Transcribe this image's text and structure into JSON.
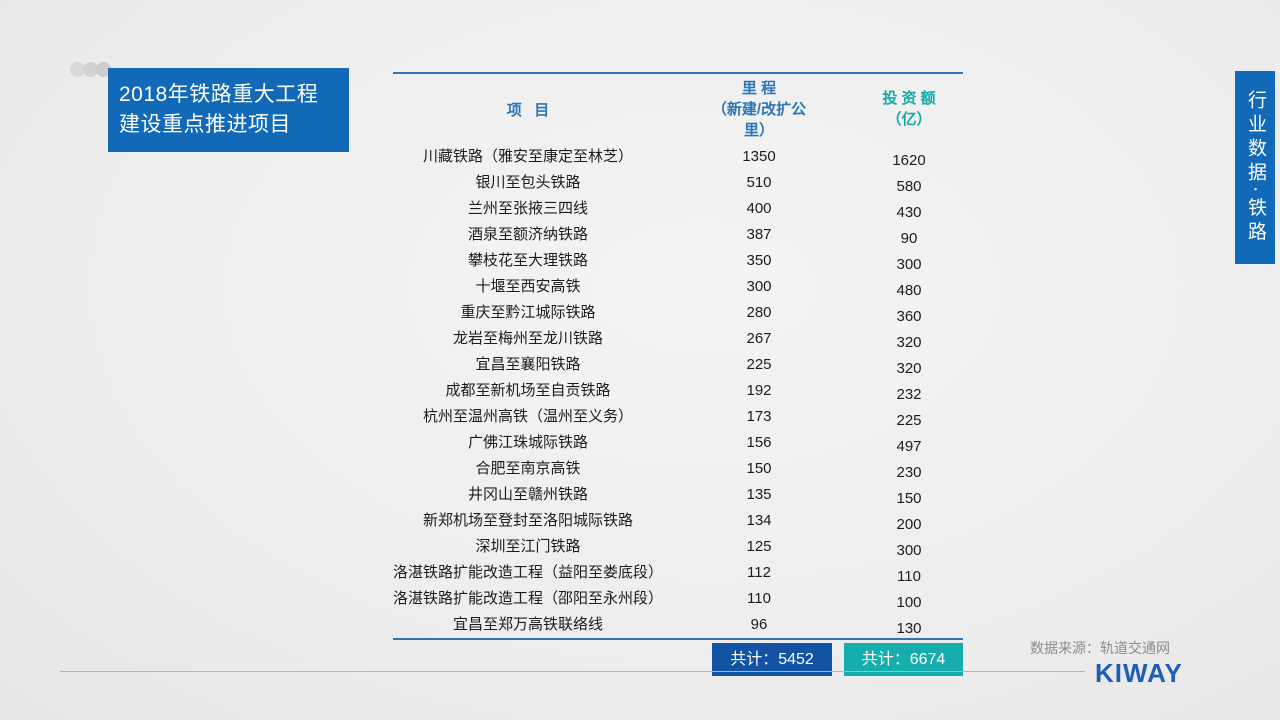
{
  "colors": {
    "accent_blue": "#1169b8",
    "header_blue": "#2e75b6",
    "teal": "#17a9a6",
    "total_blue": "#1253a5",
    "total_teal": "#16aeac",
    "logo_blue": "#1d5fb8"
  },
  "slide": {
    "title_lines": [
      "2018年铁路重大工程",
      "建设重点推进项目"
    ],
    "side_tab": "行业数据·铁路"
  },
  "table": {
    "headers": {
      "project": "项   目",
      "mileage_lines": [
        "里 程",
        "（新建/改扩公",
        "里）"
      ],
      "investment_lines": [
        "投 资 额",
        "（亿）"
      ]
    },
    "rows": [
      {
        "project": "川藏铁路（雅安至康定至林芝）",
        "mileage_km": "1350",
        "investment_yi": "1620"
      },
      {
        "project": "银川至包头铁路",
        "mileage_km": "510",
        "investment_yi": "580"
      },
      {
        "project": "兰州至张掖三四线",
        "mileage_km": "400",
        "investment_yi": "430"
      },
      {
        "project": "酒泉至额济纳铁路",
        "mileage_km": "387",
        "investment_yi": "90"
      },
      {
        "project": "攀枝花至大理铁路",
        "mileage_km": "350",
        "investment_yi": "300"
      },
      {
        "project": "十堰至西安高铁",
        "mileage_km": "300",
        "investment_yi": "480"
      },
      {
        "project": "重庆至黔江城际铁路",
        "mileage_km": "280",
        "investment_yi": "360"
      },
      {
        "project": "龙岩至梅州至龙川铁路",
        "mileage_km": "267",
        "investment_yi": "320"
      },
      {
        "project": "宜昌至襄阳铁路",
        "mileage_km": "225",
        "investment_yi": "320"
      },
      {
        "project": "成都至新机场至自贡铁路",
        "mileage_km": "192",
        "investment_yi": "232"
      },
      {
        "project": "杭州至温州高铁（温州至义务）",
        "mileage_km": "173",
        "investment_yi": "225"
      },
      {
        "project": "广佛江珠城际铁路",
        "mileage_km": "156",
        "investment_yi": "497"
      },
      {
        "project": "合肥至南京高铁",
        "mileage_km": "150",
        "investment_yi": "230"
      },
      {
        "project": "井冈山至赣州铁路",
        "mileage_km": "135",
        "investment_yi": "150"
      },
      {
        "project": "新郑机场至登封至洛阳城际铁路",
        "mileage_km": "134",
        "investment_yi": "200"
      },
      {
        "project": "深圳至江门铁路",
        "mileage_km": "125",
        "investment_yi": "300"
      },
      {
        "project": "洛湛铁路扩能改造工程（益阳至娄底段）",
        "mileage_km": "112",
        "investment_yi": "110"
      },
      {
        "project": "洛湛铁路扩能改造工程（邵阳至永州段）",
        "mileage_km": "110",
        "investment_yi": "100"
      },
      {
        "project": "宜昌至郑万高铁联络线",
        "mileage_km": "96",
        "investment_yi": "130"
      }
    ],
    "totals": {
      "mileage": "共计：5452",
      "investment": "共计：6674"
    }
  },
  "footer": {
    "source": "数据来源：轨道交通网",
    "logo": "KIWAY"
  }
}
